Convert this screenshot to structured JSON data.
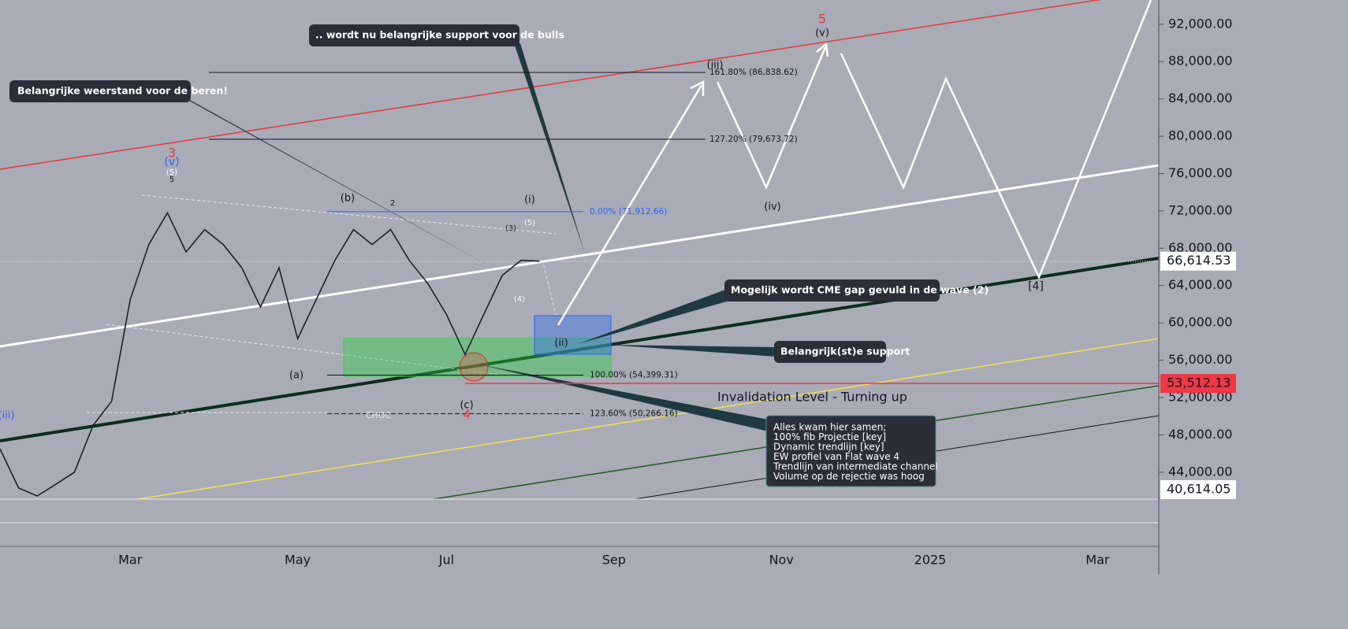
{
  "chart_data": {
    "type": "line",
    "categories": [
      null,
      null,
      null,
      null,
      null,
      null,
      null,
      "Mar",
      null,
      null,
      null,
      null,
      null,
      null,
      null,
      null,
      "May",
      null,
      null,
      null,
      null,
      null,
      null,
      null,
      "Jul",
      null,
      null,
      null,
      null,
      null,
      null,
      null,
      null,
      "Sep",
      null,
      null,
      null,
      null,
      null,
      null,
      null,
      null,
      "Nov",
      null,
      null,
      null,
      null,
      null,
      null,
      null,
      "2025",
      null,
      null,
      null,
      null,
      null,
      null,
      null,
      null,
      "Mar",
      null,
      null,
      null
    ],
    "series": [
      {
        "color": "#1e222d",
        "values": [
          46500,
          42300,
          41450,
          42700,
          44000,
          49000,
          51600,
          62500,
          68400,
          71800,
          67600,
          70000,
          68400,
          65900,
          61700,
          65900,
          58300,
          62500,
          66700,
          70000,
          68400,
          70000,
          66700,
          64200,
          60900,
          56600,
          60900,
          65100,
          66700,
          66614.53,
          null,
          null,
          null,
          null,
          null,
          null,
          null,
          null,
          null,
          null,
          null,
          null,
          null,
          null,
          null,
          null,
          null,
          null,
          null,
          null,
          null,
          null,
          null,
          null,
          null,
          null,
          null,
          null,
          null,
          null,
          null,
          null,
          null
        ]
      }
    ],
    "ylim": [
      36000,
      94600
    ],
    "yticks": [
      {
        "value": 44000,
        "label": "44,000.00"
      },
      {
        "value": 48000,
        "label": "48,000.00"
      },
      {
        "value": 52000,
        "label": "52,000.00"
      },
      {
        "value": 56000,
        "label": "56,000.00"
      },
      {
        "value": 60000,
        "label": "60,000.00"
      },
      {
        "value": 64000,
        "label": "64,000.00"
      },
      {
        "value": 68000,
        "label": "68,000.00"
      },
      {
        "value": 72000,
        "label": "72,000.00"
      },
      {
        "value": 76000,
        "label": "76,000.00"
      },
      {
        "value": 80000,
        "label": "80,000.00"
      },
      {
        "value": 84000,
        "label": "84,000.00"
      },
      {
        "value": 88000,
        "label": "88,000.00"
      },
      {
        "value": 92000,
        "label": "92,000.00"
      }
    ],
    "price_labels": [
      {
        "value": 66614.53,
        "label": "66,614.53",
        "color": "#ffffff"
      },
      {
        "value": 53512.13,
        "label": "53,512.13",
        "color": "#f23645"
      },
      {
        "value": 40614.05,
        "label": "40,614.05",
        "color": "#ffffff"
      }
    ],
    "fib_levels": [
      {
        "value": 86838.62,
        "label": "161.80% (86,838.62)",
        "color": "#131722"
      },
      {
        "value": 79673.72,
        "label": "127.20% (79,673.72)",
        "color": "#131722"
      },
      {
        "value": 71912.66,
        "label": "0.00% (71,912.66)",
        "color": "#2962ff"
      },
      {
        "value": 54399.31,
        "label": "100.00% (54,399.31)",
        "color": "#131722"
      },
      {
        "value": 50266.16,
        "label": "123.60% (50,266.16)",
        "color": "#131722"
      }
    ],
    "wave_labels": [
      "3",
      "(v)",
      "(5)",
      "5",
      "(b)",
      "2",
      "(a)",
      "(c)",
      "4",
      "(i)",
      "(5)",
      "(3)",
      "(4)",
      "(ii)",
      "(iii)",
      "(iv)",
      "(v)",
      "5",
      "[4]",
      "(iii)",
      "CHOC"
    ],
    "callouts": [
      "Belangrijke weerstand voor de beren!",
      ".. wordt nu belangrijke support voor de bulls",
      "Mogelijk wordt CME gap gevuld in de wave (2)",
      "Belangrijk(st)e support"
    ],
    "invalidation": "Invalidation Level - Turning up",
    "summary": [
      "Alles kwam hier samen;",
      "100% fib Projectie [key]",
      "Dynamic trendlijn [key]",
      "EW profiel van Flat wave 4",
      "Trendlijn van intermediate channel",
      "Volume op de rejectie was hoog"
    ]
  }
}
